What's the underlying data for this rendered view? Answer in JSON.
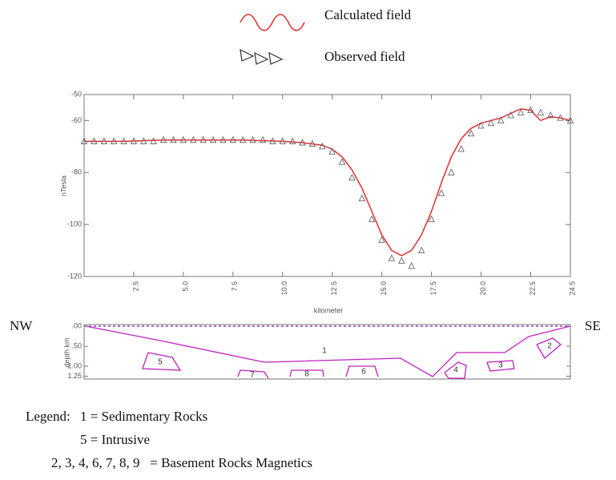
{
  "chart_data": {
    "type": "line",
    "x_label": "kilometer",
    "y_label": "nTesla",
    "xlim": [
      0,
      24.5
    ],
    "xticks": [
      {
        "value": 2.5,
        "label": "2.5"
      },
      {
        "value": 5,
        "label": "5.0"
      },
      {
        "value": 7.5,
        "label": "7.5"
      },
      {
        "value": 10,
        "label": "10.0"
      },
      {
        "value": 12.5,
        "label": "12.5"
      },
      {
        "value": 15,
        "label": "15.0"
      },
      {
        "value": 17.5,
        "label": "17.5"
      },
      {
        "value": 20,
        "label": "20.0"
      },
      {
        "value": 22.5,
        "label": "22.5"
      },
      {
        "value": 24.5,
        "label": "24.5"
      }
    ],
    "ylim": [
      -120,
      -50
    ],
    "yticks": [
      -120,
      -100,
      -80,
      -60,
      -50
    ],
    "series": [
      {
        "name": "Calculated field",
        "color": "#e03030",
        "x": [
          0,
          2,
          4,
          6,
          8,
          10,
          11,
          12,
          12.5,
          13,
          13.5,
          14,
          14.5,
          15,
          15.5,
          16,
          16.5,
          17,
          17.5,
          18,
          18.5,
          19,
          19.5,
          20,
          21,
          22,
          22.5,
          23,
          23.5,
          24,
          24.5
        ],
        "values": [
          -68,
          -68,
          -67.5,
          -67.5,
          -67.5,
          -68,
          -68.5,
          -69.5,
          -71,
          -74,
          -79,
          -86,
          -95,
          -104,
          -110,
          -112,
          -110,
          -104,
          -95,
          -84,
          -74,
          -67,
          -63,
          -61,
          -59,
          -55.5,
          -56,
          -60,
          -58.5,
          -59,
          -60
        ]
      },
      {
        "name": "Observed field",
        "color": "#666666",
        "marker": "triangle",
        "x": [
          0,
          0.5,
          1,
          1.5,
          2,
          2.5,
          3,
          3.5,
          4,
          4.5,
          5,
          5.5,
          6,
          6.5,
          7,
          7.5,
          8,
          8.5,
          9,
          9.5,
          10,
          10.5,
          11,
          11.5,
          12,
          12.5,
          13,
          13.5,
          14,
          14.5,
          15,
          15.5,
          16,
          16.5,
          17,
          17.5,
          18,
          18.5,
          19,
          19.5,
          20,
          20.5,
          21,
          21.5,
          22,
          22.5,
          23,
          23.5,
          24,
          24.5
        ],
        "values": [
          -68,
          -68,
          -68,
          -68,
          -68,
          -68,
          -68,
          -68,
          -67.5,
          -67.5,
          -67.5,
          -67.5,
          -67.5,
          -67.5,
          -67.5,
          -67.5,
          -67.5,
          -67.5,
          -67.5,
          -68,
          -68,
          -68,
          -68.5,
          -69,
          -70,
          -72,
          -76,
          -82,
          -90,
          -98,
          -106,
          -113,
          -114,
          -116,
          -110,
          -98,
          -88,
          -80,
          -71,
          -65,
          -62,
          -61,
          -60,
          -58,
          -57,
          -56,
          -57,
          -58,
          -59,
          -60
        ]
      }
    ]
  },
  "section": {
    "y_label": "depth km",
    "left_label": "NW",
    "right_label": "SE",
    "ylim": [
      0,
      1.3
    ],
    "yticks": [
      {
        "value": 0,
        "label": ".00"
      },
      {
        "value": 0.5,
        "label": ".50"
      },
      {
        "value": 1,
        "label": "1.00"
      },
      {
        "value": 1.25,
        "label": "1.25"
      }
    ],
    "bodies": [
      "1",
      "2",
      "3",
      "4",
      "5",
      "6",
      "7",
      "8",
      "9"
    ]
  },
  "legend": {
    "title": "Legend:",
    "lines": [
      "1 = Sedimentary Rocks",
      "5 = Intrusive",
      "2, 3, 4, 6, 7, 8, 9   = Basement Rocks Magnetics"
    ]
  }
}
